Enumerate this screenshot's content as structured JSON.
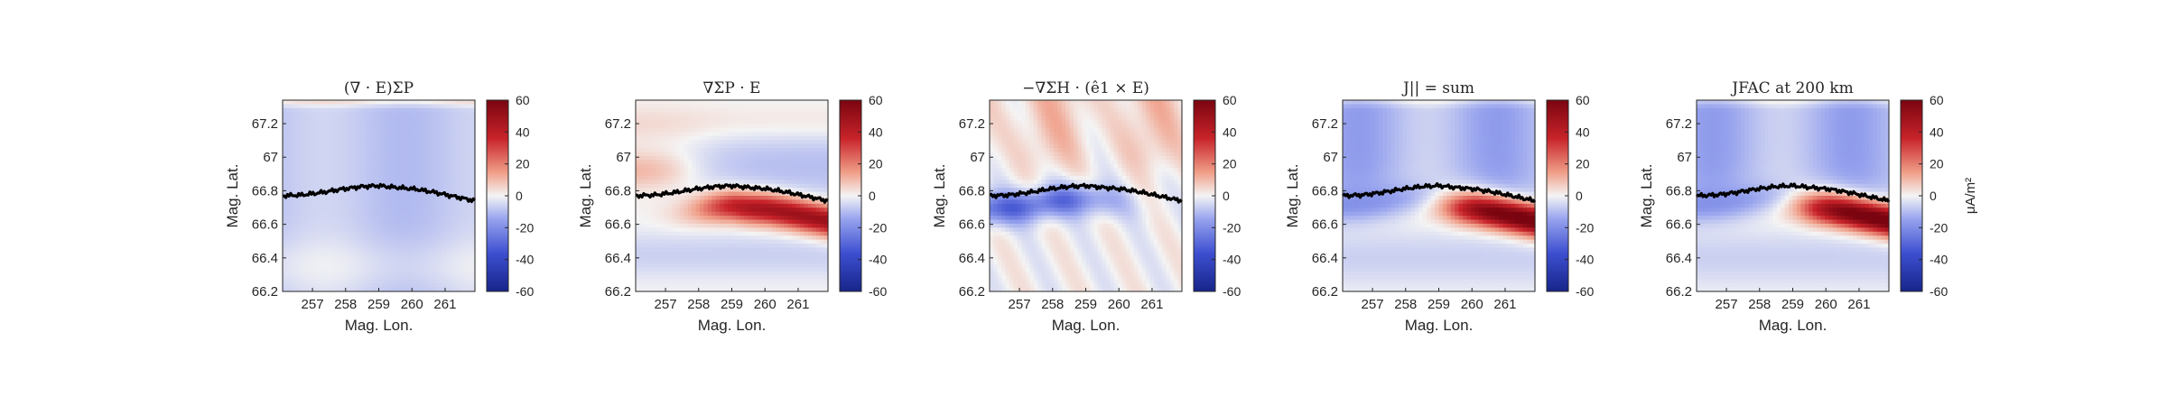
{
  "chart_data": [
    {
      "type": "heatmap",
      "title": "(∇ · E)ΣP",
      "xlabel": "Mag. Lon.",
      "ylabel": "Mag. Lat.",
      "xlim": [
        256.1,
        261.9
      ],
      "ylim": [
        66.2,
        67.34
      ],
      "xticks": [
        257,
        258,
        259,
        260,
        261
      ],
      "yticks": [
        66.2,
        66.4,
        66.6,
        66.8,
        67,
        67.2
      ],
      "color_range": [
        -60,
        60
      ],
      "colorbar_ticks": [
        60,
        40,
        20,
        0,
        -20,
        -40,
        -60
      ],
      "colorbar_label": "",
      "field_description": "weak negative over most of panel, faint positive band at bottom and at top edge",
      "boundary_line": {
        "x": [
          256.1,
          256.7,
          257.3,
          257.9,
          258.5,
          259.0,
          259.5,
          260.1,
          260.7,
          261.3,
          261.9
        ],
        "y": [
          66.77,
          66.775,
          66.79,
          66.81,
          66.825,
          66.83,
          66.82,
          66.81,
          66.79,
          66.765,
          66.74
        ]
      }
    },
    {
      "type": "heatmap",
      "title": "∇ΣP · E",
      "xlabel": "Mag. Lon.",
      "ylabel": "Mag. Lat.",
      "xlim": [
        256.1,
        261.9
      ],
      "ylim": [
        66.2,
        67.34
      ],
      "xticks": [
        257,
        258,
        259,
        260,
        261
      ],
      "yticks": [
        66.2,
        66.4,
        66.6,
        66.8,
        67,
        67.2
      ],
      "color_range": [
        -60,
        60
      ],
      "colorbar_ticks": [
        60,
        40,
        20,
        0,
        -20,
        -40,
        -60
      ],
      "colorbar_label": "",
      "field_description": "strong positive band just below boundary from 258 to 262, weak negative above",
      "boundary_line": {
        "x": [
          256.1,
          256.7,
          257.3,
          257.9,
          258.5,
          259.0,
          259.5,
          260.1,
          260.7,
          261.3,
          261.9
        ],
        "y": [
          66.77,
          66.775,
          66.79,
          66.81,
          66.825,
          66.83,
          66.82,
          66.81,
          66.79,
          66.765,
          66.74
        ]
      }
    },
    {
      "type": "heatmap",
      "title": "−∇ΣH · (ê1 × E)",
      "xlabel": "Mag. Lon.",
      "ylabel": "Mag. Lat.",
      "xlim": [
        256.1,
        261.9
      ],
      "ylim": [
        66.2,
        67.34
      ],
      "xticks": [
        257,
        258,
        259,
        260,
        261
      ],
      "yticks": [
        66.2,
        66.4,
        66.6,
        66.8,
        67,
        67.2
      ],
      "color_range": [
        -60,
        60
      ],
      "colorbar_ticks": [
        60,
        40,
        20,
        0,
        -20,
        -40,
        -60
      ],
      "colorbar_label": "",
      "field_description": "weak positive above boundary, negative band just below boundary from 256 to 260",
      "boundary_line": {
        "x": [
          256.1,
          256.7,
          257.3,
          257.9,
          258.5,
          259.0,
          259.5,
          260.1,
          260.7,
          261.3,
          261.9
        ],
        "y": [
          66.77,
          66.775,
          66.79,
          66.81,
          66.825,
          66.83,
          66.82,
          66.81,
          66.79,
          66.765,
          66.74
        ]
      }
    },
    {
      "type": "heatmap",
      "title": "J|| = sum",
      "xlabel": "Mag. Lon.",
      "ylabel": "Mag. Lat.",
      "xlim": [
        256.1,
        261.9
      ],
      "ylim": [
        66.2,
        67.34
      ],
      "xticks": [
        257,
        258,
        259,
        260,
        261
      ],
      "yticks": [
        66.2,
        66.4,
        66.6,
        66.8,
        67,
        67.2
      ],
      "color_range": [
        -60,
        60
      ],
      "colorbar_ticks": [
        60,
        40,
        20,
        0,
        -20,
        -40,
        -60
      ],
      "colorbar_label": "",
      "field_description": "negative above boundary, strong positive band below boundary from 259.5 to 262",
      "boundary_line": {
        "x": [
          256.1,
          256.7,
          257.3,
          257.9,
          258.5,
          259.0,
          259.5,
          260.1,
          260.7,
          261.3,
          261.9
        ],
        "y": [
          66.77,
          66.775,
          66.79,
          66.81,
          66.825,
          66.83,
          66.82,
          66.81,
          66.79,
          66.765,
          66.74
        ]
      }
    },
    {
      "type": "heatmap",
      "title": "JFAC at 200 km",
      "xlabel": "Mag. Lon.",
      "ylabel": "Mag. Lat.",
      "xlim": [
        256.1,
        261.9
      ],
      "ylim": [
        66.2,
        67.34
      ],
      "xticks": [
        257,
        258,
        259,
        260,
        261
      ],
      "yticks": [
        66.2,
        66.4,
        66.6,
        66.8,
        67,
        67.2
      ],
      "color_range": [
        -60,
        60
      ],
      "colorbar_ticks": [
        60,
        40,
        20,
        0,
        -20,
        -40,
        -60
      ],
      "colorbar_label": "μA/m²",
      "field_description": "negative above boundary, strong positive band below boundary from 259.5 to 262",
      "boundary_line": {
        "x": [
          256.1,
          256.7,
          257.3,
          257.9,
          258.5,
          259.0,
          259.5,
          260.1,
          260.7,
          261.3,
          261.9
        ],
        "y": [
          66.77,
          66.775,
          66.79,
          66.81,
          66.825,
          66.83,
          66.82,
          66.81,
          66.79,
          66.765,
          66.74
        ]
      }
    }
  ],
  "colors": {
    "negative": "#1e2f9a",
    "zero": "#f4f4f4",
    "positive": "#8a0a14",
    "boundary_line": "#000000"
  }
}
